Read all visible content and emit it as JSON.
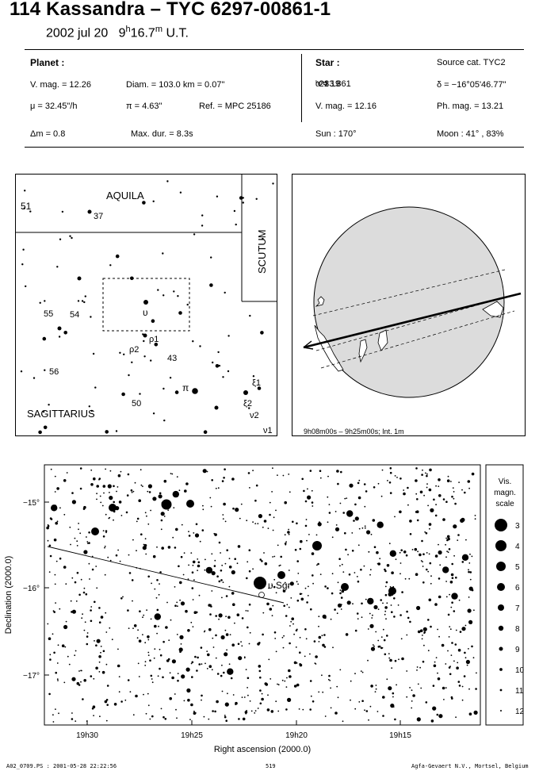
{
  "header": {
    "title": "114 Kassandra  –  TYC 6297-00861-1",
    "date": "2002 jul 20",
    "time_main": "9",
    "time_h": "h",
    "time_min": "16.7",
    "time_m": "m",
    "time_ut": "U.T."
  },
  "planet": {
    "heading": "Planet :",
    "vmag": "V. mag. = 12.26",
    "diam": "Diam. = 103.0 km = 0.07\"",
    "mu": "μ =  32.45\"/h",
    "pi": "π =  4.63\"",
    "ref": "Ref. = MPC 25186",
    "dm": "Δm = 0.8",
    "maxdur": "Max. dur. = 8.3s"
  },
  "star": {
    "heading": "Star :",
    "source": "Source cat.  TYC2",
    "ra_a": "α = 19",
    "ra_h": "h",
    "ra_b": "21",
    "ra_m": "m",
    "ra_c": "33.861",
    "ra_s": "s",
    "dec": "δ = −16°05'46.77\"",
    "vmag": "V. mag. = 12.16",
    "phmag": "Ph. mag. = 13.21",
    "sun": "Sun : 170°",
    "moon": "Moon :  41° , 83%"
  },
  "finder": {
    "aquila": "AQUILA",
    "scutum": "SCUTUM",
    "sagittarius": "SAGITTARIUS",
    "labels": [
      "51",
      "37",
      "55",
      "54",
      "υ",
      "ρ1",
      "ρ2",
      "43",
      "56",
      "π",
      "ξ1",
      "ξ2",
      "50",
      "ν2",
      "ν1"
    ]
  },
  "globe": {
    "caption": "9h08m00s –  9h25m00s; Int.  1m"
  },
  "map": {
    "ylabel": "Declination (2000.0)",
    "xlabel": "Right ascension (2000.0)",
    "yticks": [
      "−15°",
      "−16°",
      "−17°"
    ],
    "xticks": [
      "19h30",
      "19h25",
      "19h20",
      "19h15"
    ],
    "star_label": "υ Sgr"
  },
  "scale": {
    "title1": "Vis.",
    "title2": "magn.",
    "title3": "scale",
    "mags": [
      "3",
      "4",
      "5",
      "6",
      "7",
      "8",
      "9",
      "10",
      "11",
      "12"
    ]
  },
  "footer": {
    "left": "A02_0709.PS : 2001-05-28 22:22:56",
    "center": "519",
    "right": "Agfa-Gevaert N.V., Mortsel, Belgium"
  }
}
